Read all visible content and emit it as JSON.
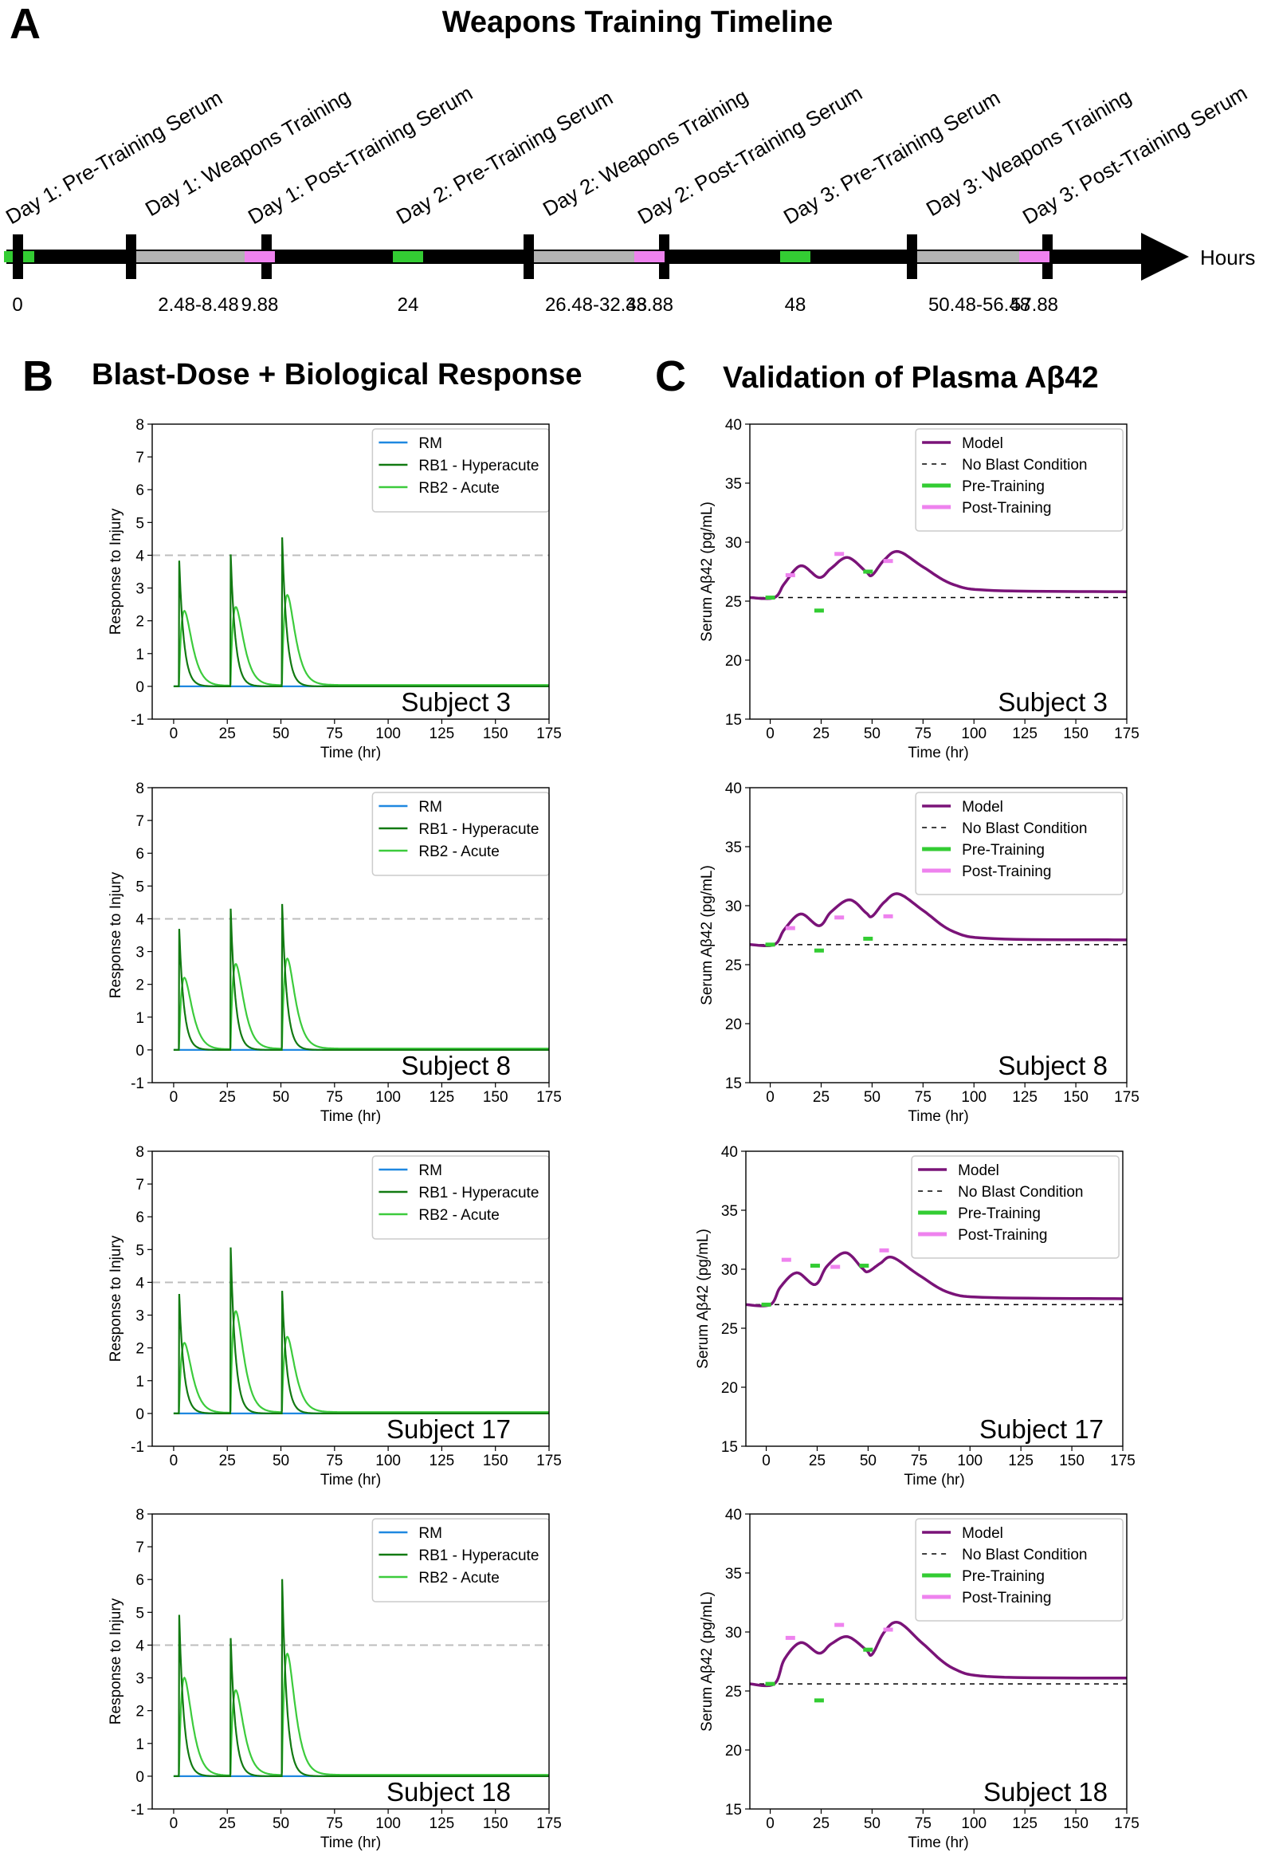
{
  "panels": {
    "a_letter": "A",
    "a_title": "Weapons Training Timeline",
    "b_letter": "B",
    "b_title": "Blast-Dose + Biological Response",
    "c_letter": "C",
    "c_title": "Validation of Plasma Aβ42"
  },
  "timeline": {
    "axis_label": "Hours",
    "events": [
      {
        "label": "Day 1: Pre-Training Serum",
        "value": "0",
        "kind": "pre",
        "t": 0
      },
      {
        "label": "Day 1: Weapons Training",
        "value": "2.48-8.48",
        "kind": "train",
        "t": 2.48,
        "t_end": 8.48
      },
      {
        "label": "Day 1: Post-Training Serum",
        "value": "9.88",
        "kind": "post",
        "t": 9.88
      },
      {
        "label": "Day 2: Pre-Training Serum",
        "value": "24",
        "kind": "pre",
        "t": 24
      },
      {
        "label": "Day 2: Weapons Training",
        "value": "26.48-32.48",
        "kind": "train",
        "t": 26.48,
        "t_end": 32.48
      },
      {
        "label": "Day 2: Post-Training Serum",
        "value": "33.88",
        "kind": "post",
        "t": 33.88
      },
      {
        "label": "Day 3: Pre-Training Serum",
        "value": "48",
        "kind": "pre",
        "t": 48
      },
      {
        "label": "Day 3: Weapons Training",
        "value": "50.48-56.48",
        "kind": "train",
        "t": 50.48,
        "t_end": 56.48
      },
      {
        "label": "Day 3: Post-Training Serum",
        "value": "57.88",
        "kind": "post",
        "t": 57.88
      }
    ],
    "colors": {
      "axis": "#000000",
      "pre": "#33cc33",
      "train": "#b3b3b3",
      "post": "#ee82ee"
    }
  },
  "chart_data": [
    {
      "type": "line",
      "panel": "B",
      "subject": "Subject 3",
      "xlabel": "Time (hr)",
      "ylabel": "Response to Injury",
      "xlim": [
        -10,
        175
      ],
      "ylim": [
        -1,
        8
      ],
      "xticks": [
        0,
        25,
        50,
        75,
        100,
        125,
        150,
        175
      ],
      "yticks": [
        -1,
        0,
        1,
        2,
        3,
        4,
        5,
        6,
        7,
        8
      ],
      "threshold": 4,
      "legend": [
        "RM",
        "RB1 - Hyperacute",
        "RB2 - Acute"
      ],
      "onsets": [
        2.48,
        26.48,
        50.48
      ],
      "rb1_peaks": [
        4.05,
        4.25,
        4.8
      ],
      "rb2_peaks": [
        2.3,
        2.4,
        2.75
      ]
    },
    {
      "type": "line",
      "panel": "C",
      "subject": "Subject 3",
      "xlabel": "Time (hr)",
      "ylabel": "Serum Aβ42 (pg/mL)",
      "xlim": [
        -10,
        175
      ],
      "ylim": [
        15,
        40
      ],
      "xticks": [
        0,
        25,
        50,
        75,
        100,
        125,
        150,
        175
      ],
      "yticks": [
        15,
        20,
        25,
        30,
        35,
        40
      ],
      "legend": [
        "Model",
        "No Blast Condition",
        "Pre-Training",
        "Post-Training"
      ],
      "baseline": 25.3,
      "final": 25.8,
      "model_points": [
        [
          -10,
          25.3
        ],
        [
          2,
          25.3
        ],
        [
          7,
          26.5
        ],
        [
          15,
          28.0
        ],
        [
          24,
          27.0
        ],
        [
          30,
          27.8
        ],
        [
          38,
          28.7
        ],
        [
          47,
          27.5
        ],
        [
          50,
          27.2
        ],
        [
          56,
          28.5
        ],
        [
          63,
          29.2
        ],
        [
          75,
          27.9
        ],
        [
          90,
          26.4
        ],
        [
          110,
          25.9
        ],
        [
          175,
          25.8
        ]
      ],
      "pre": [
        [
          0,
          25.3
        ],
        [
          24,
          24.2
        ],
        [
          48,
          27.5
        ]
      ],
      "post": [
        [
          9.88,
          27.2
        ],
        [
          33.88,
          29.0
        ],
        [
          57.88,
          28.4
        ]
      ]
    },
    {
      "type": "line",
      "panel": "B",
      "subject": "Subject 8",
      "xlabel": "Time (hr)",
      "ylabel": "Response to Injury",
      "xlim": [
        -10,
        175
      ],
      "ylim": [
        -1,
        8
      ],
      "xticks": [
        0,
        25,
        50,
        75,
        100,
        125,
        150,
        175
      ],
      "yticks": [
        -1,
        0,
        1,
        2,
        3,
        4,
        5,
        6,
        7,
        8
      ],
      "threshold": 4,
      "legend": [
        "RM",
        "RB1 - Hyperacute",
        "RB2 - Acute"
      ],
      "onsets": [
        2.48,
        26.48,
        50.48
      ],
      "rb1_peaks": [
        3.9,
        4.55,
        4.7
      ],
      "rb2_peaks": [
        2.2,
        2.6,
        2.75
      ]
    },
    {
      "type": "line",
      "panel": "C",
      "subject": "Subject 8",
      "xlabel": "Time (hr)",
      "ylabel": "Serum Aβ42 (pg/mL)",
      "xlim": [
        -10,
        175
      ],
      "ylim": [
        15,
        40
      ],
      "xticks": [
        0,
        25,
        50,
        75,
        100,
        125,
        150,
        175
      ],
      "yticks": [
        15,
        20,
        25,
        30,
        35,
        40
      ],
      "legend": [
        "Model",
        "No Blast Condition",
        "Pre-Training",
        "Post-Training"
      ],
      "baseline": 26.7,
      "final": 27.1,
      "model_points": [
        [
          -10,
          26.7
        ],
        [
          2,
          26.7
        ],
        [
          7,
          28.0
        ],
        [
          15,
          29.3
        ],
        [
          24,
          28.3
        ],
        [
          30,
          29.5
        ],
        [
          39,
          30.5
        ],
        [
          47,
          29.4
        ],
        [
          50,
          29.1
        ],
        [
          56,
          30.3
        ],
        [
          63,
          31.0
        ],
        [
          75,
          29.6
        ],
        [
          90,
          27.8
        ],
        [
          110,
          27.2
        ],
        [
          175,
          27.1
        ]
      ],
      "pre": [
        [
          0,
          26.7
        ],
        [
          24,
          26.2
        ],
        [
          48,
          27.2
        ]
      ],
      "post": [
        [
          9.88,
          28.1
        ],
        [
          33.88,
          29.0
        ],
        [
          57.88,
          29.1
        ]
      ]
    },
    {
      "type": "line",
      "panel": "B",
      "subject": "Subject 17",
      "xlabel": "Time (hr)",
      "ylabel": "Response to Injury",
      "xlim": [
        -10,
        175
      ],
      "ylim": [
        -1,
        8
      ],
      "xticks": [
        0,
        25,
        50,
        75,
        100,
        125,
        150,
        175
      ],
      "yticks": [
        -1,
        0,
        1,
        2,
        3,
        4,
        5,
        6,
        7,
        8
      ],
      "threshold": 4,
      "legend": [
        "RM",
        "RB1 - Hyperacute",
        "RB2 - Acute"
      ],
      "onsets": [
        2.48,
        26.48,
        50.48
      ],
      "rb1_peaks": [
        3.85,
        5.35,
        3.95
      ],
      "rb2_peaks": [
        2.15,
        3.1,
        2.3
      ]
    },
    {
      "type": "line",
      "panel": "C",
      "subject": "Subject 17",
      "xlabel": "Time (hr)",
      "ylabel": "Serum Aβ42 (pg/mL)",
      "xlim": [
        -10,
        175
      ],
      "ylim": [
        15,
        40
      ],
      "xticks": [
        0,
        25,
        50,
        75,
        100,
        125,
        150,
        175
      ],
      "yticks": [
        15,
        20,
        25,
        30,
        35,
        40
      ],
      "legend": [
        "Model",
        "No Blast Condition",
        "Pre-Training",
        "Post-Training"
      ],
      "baseline": 27.0,
      "final": 27.5,
      "model_points": [
        [
          -10,
          27.0
        ],
        [
          2,
          27.0
        ],
        [
          7,
          28.5
        ],
        [
          15,
          29.7
        ],
        [
          24,
          28.7
        ],
        [
          30,
          30.3
        ],
        [
          39,
          31.4
        ],
        [
          47,
          30.1
        ],
        [
          50,
          29.8
        ],
        [
          56,
          30.5
        ],
        [
          62,
          31.0
        ],
        [
          75,
          29.5
        ],
        [
          90,
          28.0
        ],
        [
          110,
          27.6
        ],
        [
          175,
          27.5
        ]
      ],
      "pre": [
        [
          0,
          27.0
        ],
        [
          24,
          30.3
        ],
        [
          48,
          30.3
        ]
      ],
      "post": [
        [
          9.88,
          30.8
        ],
        [
          33.88,
          30.2
        ],
        [
          57.88,
          31.6
        ]
      ]
    },
    {
      "type": "line",
      "panel": "B",
      "subject": "Subject 18",
      "xlabel": "Time (hr)",
      "ylabel": "Response to Injury",
      "xlim": [
        -10,
        175
      ],
      "ylim": [
        -1,
        8
      ],
      "xticks": [
        0,
        25,
        50,
        75,
        100,
        125,
        150,
        175
      ],
      "yticks": [
        -1,
        0,
        1,
        2,
        3,
        4,
        5,
        6,
        7,
        8
      ],
      "threshold": 4,
      "legend": [
        "RM",
        "RB1 - Hyperacute",
        "RB2 - Acute"
      ],
      "onsets": [
        2.48,
        26.48,
        50.48
      ],
      "rb1_peaks": [
        5.2,
        4.45,
        6.35
      ],
      "rb2_peaks": [
        3.0,
        2.6,
        3.7
      ]
    },
    {
      "type": "line",
      "panel": "C",
      "subject": "Subject 18",
      "xlabel": "Time (hr)",
      "ylabel": "Serum Aβ42 (pg/mL)",
      "xlim": [
        -10,
        175
      ],
      "ylim": [
        15,
        40
      ],
      "xticks": [
        0,
        25,
        50,
        75,
        100,
        125,
        150,
        175
      ],
      "yticks": [
        15,
        20,
        25,
        30,
        35,
        40
      ],
      "legend": [
        "Model",
        "No Blast Condition",
        "Pre-Training",
        "Post-Training"
      ],
      "baseline": 25.6,
      "final": 26.1,
      "model_points": [
        [
          -10,
          25.6
        ],
        [
          2,
          25.6
        ],
        [
          7,
          27.7
        ],
        [
          15,
          29.1
        ],
        [
          24,
          28.2
        ],
        [
          30,
          29.0
        ],
        [
          38,
          29.6
        ],
        [
          47,
          28.5
        ],
        [
          50,
          28.1
        ],
        [
          56,
          30.0
        ],
        [
          63,
          30.8
        ],
        [
          75,
          29.0
        ],
        [
          90,
          26.9
        ],
        [
          110,
          26.2
        ],
        [
          175,
          26.1
        ]
      ],
      "pre": [
        [
          0,
          25.6
        ],
        [
          24,
          24.2
        ],
        [
          48,
          28.5
        ]
      ],
      "post": [
        [
          9.88,
          29.5
        ],
        [
          33.88,
          30.6
        ],
        [
          57.88,
          30.2
        ]
      ]
    }
  ],
  "colors": {
    "rm": "#1f88e0",
    "rb1": "#127a12",
    "rb2": "#3ccb3c",
    "model": "#7a1378",
    "no_blast": "#000000",
    "pre": "#33cc33",
    "post": "#ee82ee",
    "threshold": "#bdbdbd"
  }
}
